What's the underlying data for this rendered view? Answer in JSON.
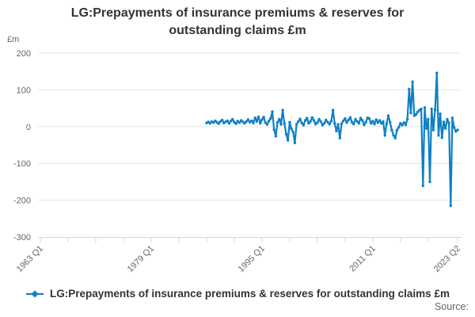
{
  "title": "LG:Prepayments of insurance premiums & reserves for outstanding claims £m",
  "y_axis_unit": "£m",
  "legend": {
    "label": "LG:Prepayments of insurance premiums & reserves for outstanding claims £m"
  },
  "source_label": "Source:",
  "colors": {
    "line": "#0f80c6",
    "grid": "#e6e6e6",
    "axis": "#ccd6eb",
    "tick_label": "#666666",
    "title_text": "#333333"
  },
  "chart_data": {
    "type": "line",
    "title": "LG:Prepayments of insurance premiums & reserves for outstanding claims £m",
    "xlabel": "",
    "ylabel": "£m",
    "ylim": [
      -300,
      200
    ],
    "y_ticks": [
      200,
      100,
      0,
      -100,
      -200,
      -300
    ],
    "grid": "horizontal",
    "legend_position": "bottom",
    "x_domain": {
      "start": "1963 Q1",
      "end": "2023 Q2",
      "total_quarters": 241
    },
    "x_ticks": [
      {
        "q": 0,
        "label": "1963 Q1"
      },
      {
        "q": 16
      },
      {
        "q": 32
      },
      {
        "q": 48
      },
      {
        "q": 64,
        "label": "1979 Q1"
      },
      {
        "q": 80
      },
      {
        "q": 96
      },
      {
        "q": 112
      },
      {
        "q": 128,
        "label": "1995 Q1"
      },
      {
        "q": 144
      },
      {
        "q": 160
      },
      {
        "q": 176
      },
      {
        "q": 192,
        "label": "2011 Q1"
      },
      {
        "q": 208
      },
      {
        "q": 224
      },
      {
        "q": 241,
        "label": "2023 Q2"
      }
    ],
    "series": [
      {
        "name": "LG:Prepayments of insurance premiums & reserves for outstanding claims £m",
        "frequency": "quarterly",
        "start": "1987 Q1",
        "end": "2023 Q2",
        "start_offset_quarters": 96,
        "values": [
          10,
          13,
          9,
          14,
          11,
          16,
          12,
          8,
          14,
          18,
          10,
          13,
          16,
          9,
          15,
          20,
          12,
          8,
          15,
          11,
          17,
          13,
          9,
          14,
          19,
          12,
          16,
          10,
          24,
          14,
          27,
          9,
          19,
          26,
          11,
          6,
          15,
          22,
          41,
          -8,
          -26,
          12,
          20,
          6,
          45,
          8,
          -20,
          -37,
          12,
          -6,
          -15,
          -44,
          6,
          14,
          21,
          10,
          4,
          17,
          23,
          9,
          14,
          25,
          17,
          7,
          11,
          20,
          14,
          4,
          9,
          18,
          12,
          7,
          15,
          45,
          9,
          -12,
          6,
          -31,
          8,
          16,
          22,
          11,
          18,
          25,
          12,
          7,
          20,
          14,
          9,
          23,
          17,
          5,
          12,
          24,
          22,
          9,
          15,
          7,
          19,
          11,
          17,
          9,
          14,
          -24,
          8,
          30,
          12,
          -9,
          -24,
          -31,
          -9,
          -2,
          9,
          4,
          11,
          5,
          20,
          102,
          37,
          122,
          30,
          33,
          40,
          45,
          48,
          -161,
          52,
          -5,
          20,
          -150,
          48,
          -9,
          46,
          146,
          -24,
          35,
          -30,
          13,
          -5,
          20,
          10,
          -215,
          24,
          -2,
          -13,
          -9
        ]
      }
    ]
  }
}
